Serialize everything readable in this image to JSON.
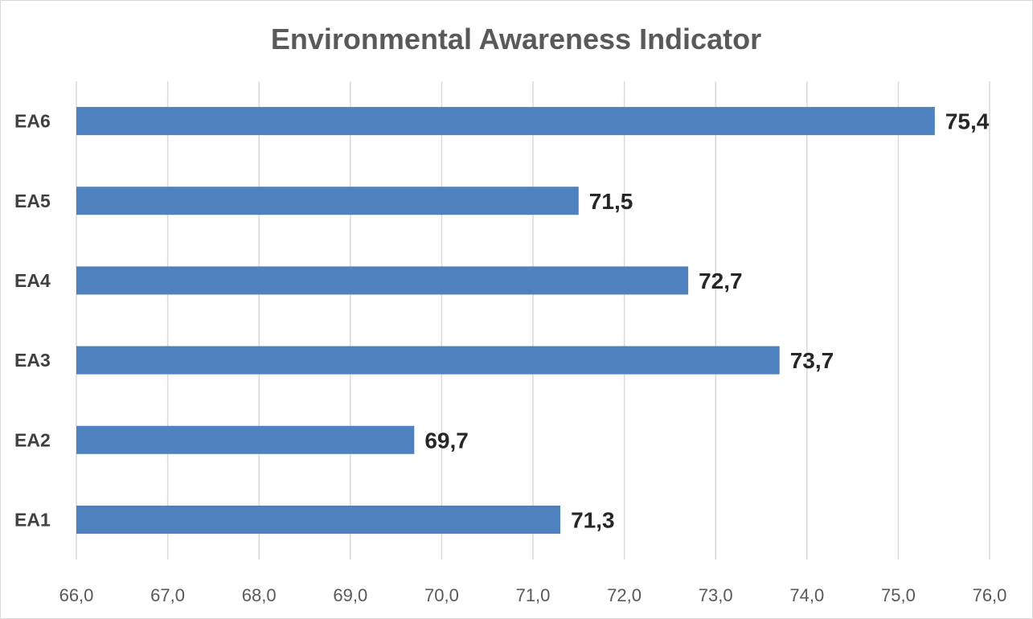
{
  "chart_data": {
    "type": "bar",
    "orientation": "horizontal",
    "title": "Environmental Awareness Indicator",
    "categories": [
      "EA1",
      "EA2",
      "EA3",
      "EA4",
      "EA5",
      "EA6"
    ],
    "values": [
      71.3,
      69.7,
      73.7,
      72.7,
      71.5,
      75.4
    ],
    "value_labels": [
      "71,3",
      "69,7",
      "73,7",
      "72,7",
      "71,5",
      "75,4"
    ],
    "xlim": [
      66.0,
      76.0
    ],
    "x_ticks": [
      "66,0",
      "67,0",
      "68,0",
      "69,0",
      "70,0",
      "71,0",
      "72,0",
      "73,0",
      "74,0",
      "75,0",
      "76,0"
    ],
    "grid": true,
    "legend": "none",
    "bar_color": "#4e81bd",
    "gridline_color": "#d9d9d9"
  }
}
